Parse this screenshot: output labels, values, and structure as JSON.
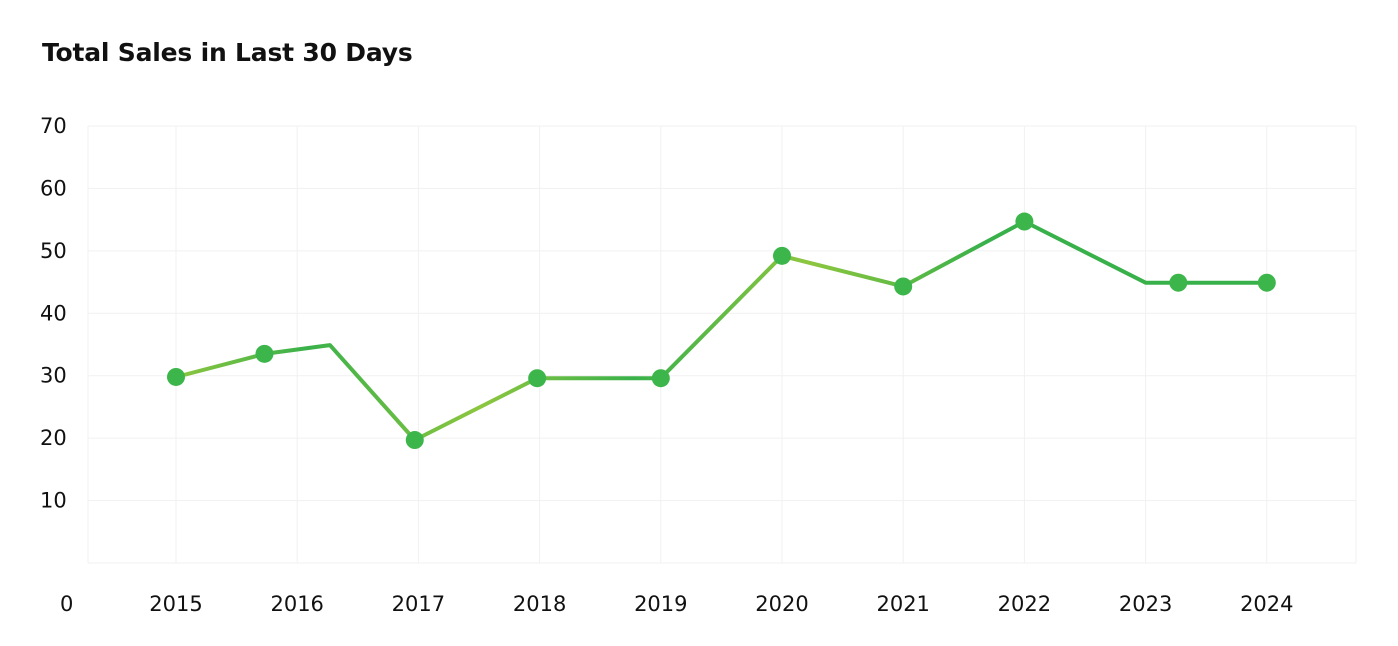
{
  "chart_data": {
    "type": "line",
    "title": "Total Sales in Last 30 Days",
    "x": [
      "2015",
      "2016",
      "2017",
      "2018",
      "2019",
      "2020",
      "2021",
      "2022",
      "2023",
      "2024"
    ],
    "points": [
      {
        "x": 2015.0,
        "y": 29.8,
        "marker": true,
        "label": "2015"
      },
      {
        "x": 2015.73,
        "y": 33.5,
        "marker": true,
        "label": "2016"
      },
      {
        "x": 2016.27,
        "y": 34.9,
        "marker": false,
        "label": ""
      },
      {
        "x": 2016.97,
        "y": 19.7,
        "marker": true,
        "label": "2017"
      },
      {
        "x": 2017.98,
        "y": 29.6,
        "marker": true,
        "label": "2018"
      },
      {
        "x": 2019.0,
        "y": 29.6,
        "marker": true,
        "label": "2019"
      },
      {
        "x": 2020.0,
        "y": 49.2,
        "marker": true,
        "label": "2020"
      },
      {
        "x": 2021.0,
        "y": 44.3,
        "marker": true,
        "label": "2021"
      },
      {
        "x": 2022.0,
        "y": 54.7,
        "marker": true,
        "label": "2022"
      },
      {
        "x": 2023.0,
        "y": 44.9,
        "marker": false,
        "label": ""
      },
      {
        "x": 2023.27,
        "y": 44.9,
        "marker": true,
        "label": "2023"
      },
      {
        "x": 2024.0,
        "y": 44.9,
        "marker": true,
        "label": "2024"
      }
    ],
    "ylim": [
      0,
      70
    ],
    "yticks": [
      10,
      20,
      30,
      40,
      50,
      60,
      70
    ],
    "x_origin_label": "0",
    "grid": true,
    "colors": {
      "line_light": "#8dc63f",
      "line_dark": "#39b14a",
      "marker": "#3cb64b",
      "grid": "#f1f1f1",
      "text": "#111111"
    }
  }
}
